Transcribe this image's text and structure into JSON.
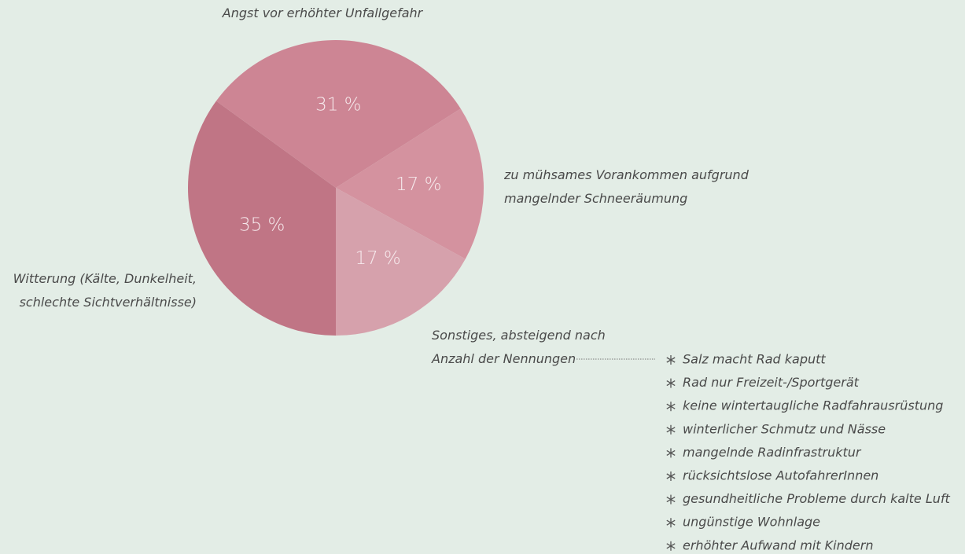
{
  "chart_data": {
    "type": "pie",
    "categories": [
      "Witterung (Kälte, Dunkelheit, schlechte Sichtverhältnisse)",
      "Angst vor erhöhter Unfallgefahr",
      "zu mühsames Vorankommen aufgrund mangelnder Schneeräumung",
      "Sonstiges, absteigend nach Anzahl der Nennungen"
    ],
    "values": [
      35,
      31,
      17,
      17
    ],
    "value_labels": [
      "35 %",
      "31 %",
      "17 %",
      "17 %"
    ],
    "colors": [
      "#c07585",
      "#cd8594",
      "#d4929f",
      "#d6a1ac"
    ],
    "other_items": [
      "Salz macht Rad kaputt",
      "Rad nur Freizeit-/Sportgerät",
      "keine wintertaugliche Radfahrausrüstung",
      "winterlicher Schmutz und Nässe",
      "mangelnde Radinfrastruktur",
      "rücksichtslose AutofahrerInnen",
      "gesundheitliche Probleme durch kalte Luft",
      "ungünstige Wohnlage",
      "erhöhter Aufwand mit Kindern"
    ]
  }
}
